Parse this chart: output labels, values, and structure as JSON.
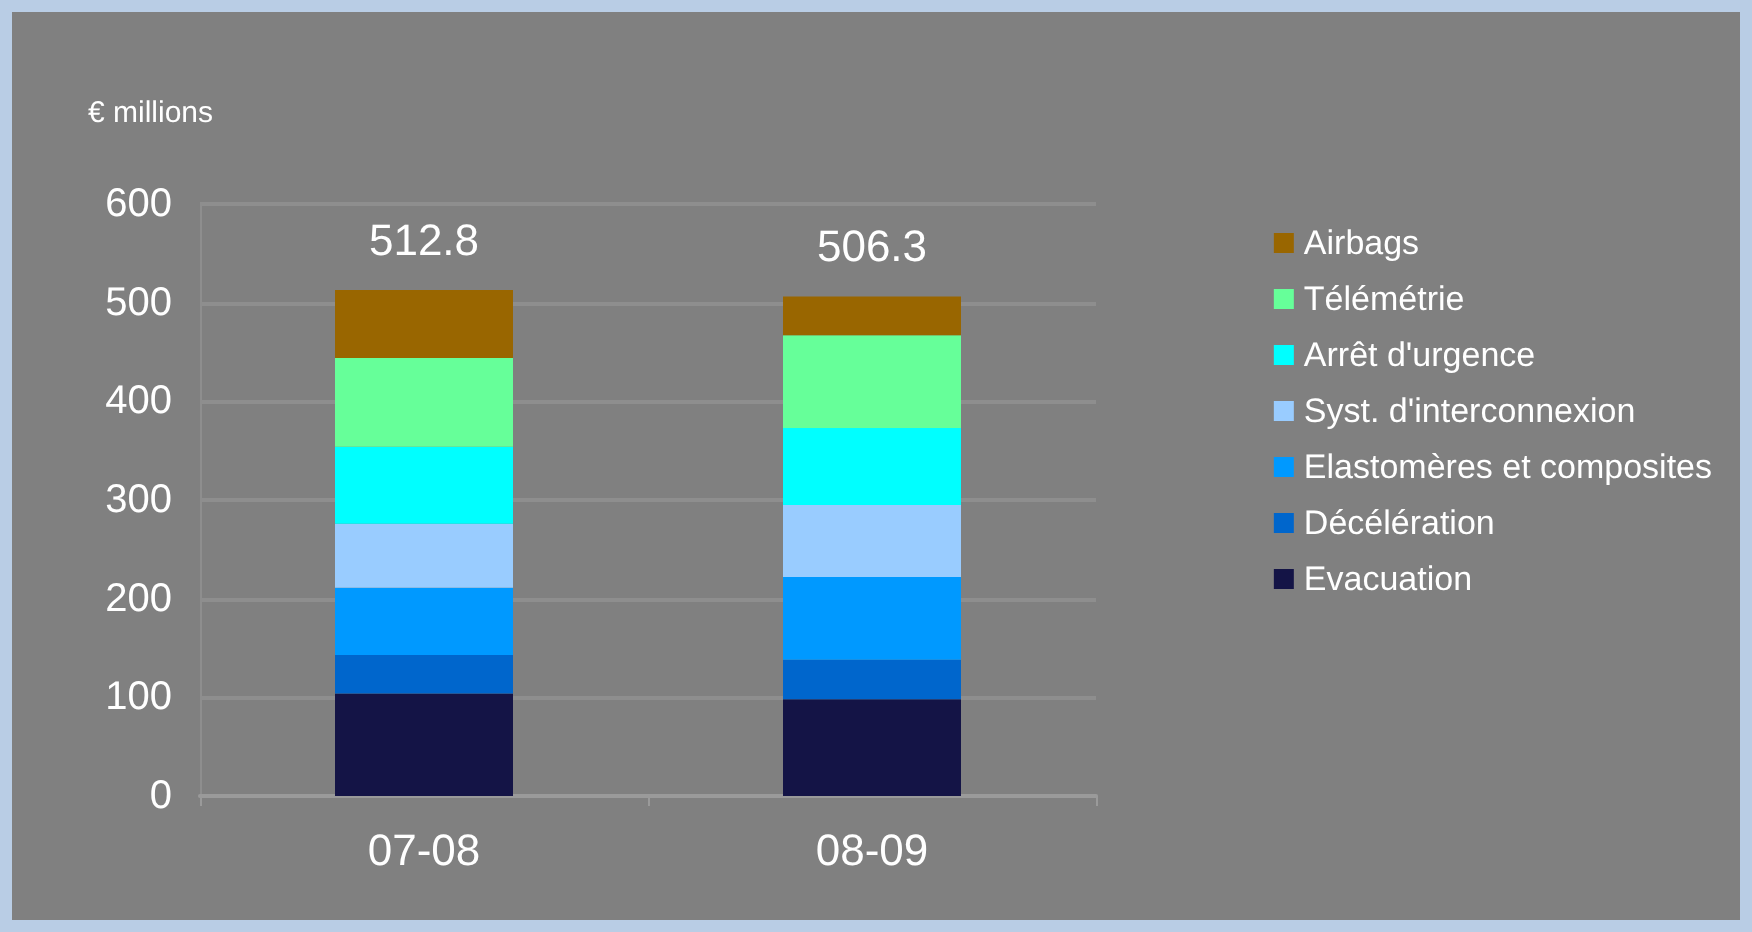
{
  "chart_data": {
    "type": "bar",
    "stacked": true,
    "ylabel": "€ millions",
    "categories": [
      "07-08",
      "08-09"
    ],
    "series": [
      {
        "name": "Evacuation",
        "color": "#141446",
        "values": [
          104,
          98
        ]
      },
      {
        "name": "Décélération",
        "color": "#0066cc",
        "values": [
          39,
          40
        ]
      },
      {
        "name": "Elastomères et composites",
        "color": "#0099ff",
        "values": [
          68,
          84
        ]
      },
      {
        "name": "Syst. d'interconnexion",
        "color": "#99ccff",
        "values": [
          65,
          73
        ]
      },
      {
        "name": "Arrêt d'urgence",
        "color": "#00ffff",
        "values": [
          78,
          78
        ]
      },
      {
        "name": "Télémétrie",
        "color": "#66ff99",
        "values": [
          90,
          94
        ]
      },
      {
        "name": "Airbags",
        "color": "#996600",
        "values": [
          68.8,
          39.3
        ]
      }
    ],
    "totals": [
      "512.8",
      "506.3"
    ],
    "ylim": [
      0,
      600
    ],
    "yticks": [
      0,
      100,
      200,
      300,
      400,
      500,
      600
    ],
    "grid": "y",
    "legend": "right"
  }
}
